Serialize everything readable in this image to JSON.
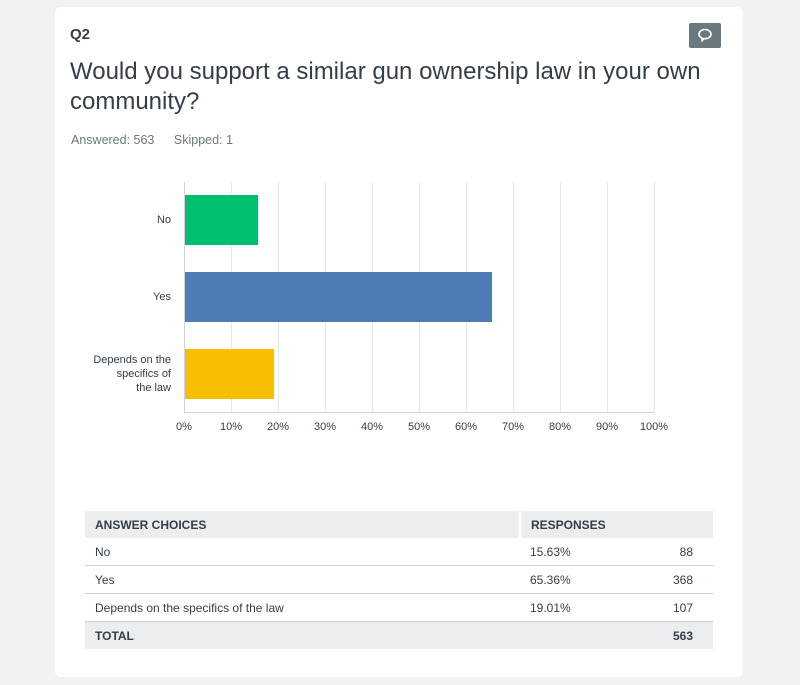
{
  "question": {
    "number": "Q2",
    "title": "Would you support a similar gun ownership law in your own community?",
    "answered_label": "Answered: 563",
    "skipped_label": "Skipped: 1",
    "comment_icon": "speech-bubble-icon"
  },
  "colors": {
    "no": "#00bf6f",
    "yes": "#507cb6",
    "depends": "#f9be00",
    "comment_button": "#6b787f"
  },
  "chart_data": {
    "type": "bar",
    "orientation": "horizontal",
    "title": "Would you support a similar gun ownership law in your own community?",
    "categories": [
      "No",
      "Yes",
      "Depends on the specifics of the law"
    ],
    "category_labels_wrapped": [
      [
        "No"
      ],
      [
        "Yes"
      ],
      [
        "Depends on the",
        "specifics of",
        "the law"
      ]
    ],
    "values": [
      15.63,
      65.36,
      19.01
    ],
    "colors": [
      "#00bf6f",
      "#507cb6",
      "#f9be00"
    ],
    "xlabel": "",
    "ylabel": "",
    "xlim": [
      0,
      100
    ],
    "x_ticks": [
      "0%",
      "10%",
      "20%",
      "30%",
      "40%",
      "50%",
      "60%",
      "70%",
      "80%",
      "90%",
      "100%"
    ],
    "grid": true,
    "legend": "none"
  },
  "table": {
    "headers": [
      "ANSWER CHOICES",
      "RESPONSES"
    ],
    "rows": [
      {
        "choice": "No",
        "percent": "15.63%",
        "count": "88"
      },
      {
        "choice": "Yes",
        "percent": "65.36%",
        "count": "368"
      },
      {
        "choice": "Depends on the specifics of the law",
        "percent": "19.01%",
        "count": "107"
      }
    ],
    "total_label": "TOTAL",
    "total_count": "563"
  }
}
